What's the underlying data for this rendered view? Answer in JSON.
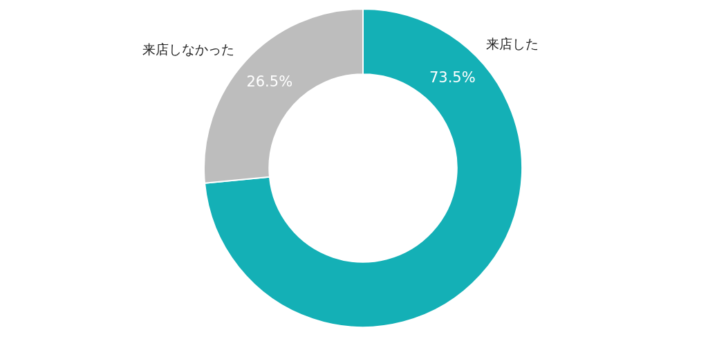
{
  "chart_data": {
    "type": "donut",
    "categories": [
      "来店した",
      "来店しなかった"
    ],
    "values": [
      73.5,
      26.5
    ],
    "colors": [
      "#14b0b6",
      "#bdbdbd"
    ],
    "value_labels": [
      "73.5%",
      "26.5%"
    ],
    "legend": false
  }
}
